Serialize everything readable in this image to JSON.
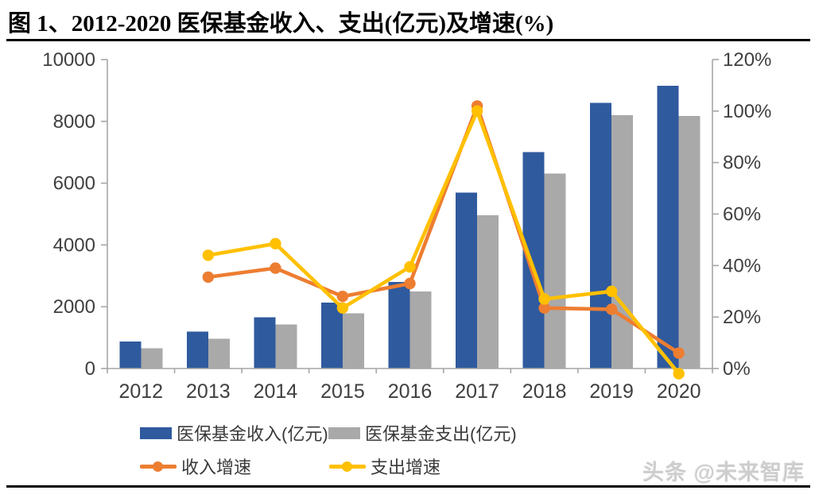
{
  "figure": {
    "title": "图 1、2012-2020 医保基金收入、支出(亿元)及增速(%)",
    "watermark": "头条 @未来智库"
  },
  "legend": [
    {
      "label": "医保基金收入(亿元)",
      "type": "bar",
      "color": "#2F5A9E"
    },
    {
      "label": "医保基金支出(亿元)",
      "type": "bar",
      "color": "#A9A9A9"
    },
    {
      "label": "收入增速",
      "type": "line",
      "color": "#ED7D31"
    },
    {
      "label": "支出增速",
      "type": "line",
      "color": "#FFC000"
    }
  ],
  "colors": {
    "axis_line": "#A6A6A6",
    "axis_text": "#3F3F3F",
    "income_bar": "#2F5A9E",
    "expense_bar": "#A9A9A9",
    "income_line": "#ED7D31",
    "expense_line": "#FFC000"
  },
  "chart_data": {
    "type": "bar",
    "subtype": "combo-bar-line-dual-axis",
    "title": "图 1、2012-2020 医保基金收入、支出(亿元)及增速(%)",
    "categories": [
      "2012",
      "2013",
      "2014",
      "2015",
      "2016",
      "2017",
      "2018",
      "2019",
      "2020"
    ],
    "series": [
      {
        "name": "医保基金收入(亿元)",
        "type": "bar",
        "axis": "left",
        "color": "#2F5A9E",
        "values": [
          870,
          1190,
          1660,
          2130,
          2800,
          5690,
          7000,
          8600,
          9150
        ]
      },
      {
        "name": "医保基金支出(亿元)",
        "type": "bar",
        "axis": "left",
        "color": "#A9A9A9",
        "values": [
          650,
          960,
          1430,
          1790,
          2490,
          4960,
          6310,
          8200,
          8170
        ]
      },
      {
        "name": "收入增速",
        "type": "line",
        "axis": "right",
        "color": "#ED7D31",
        "values": [
          null,
          35.5,
          39,
          28,
          33,
          102,
          23.5,
          23,
          6
        ]
      },
      {
        "name": "支出增速",
        "type": "line",
        "axis": "right",
        "color": "#FFC000",
        "values": [
          null,
          44,
          48.5,
          23.5,
          39.5,
          100,
          27,
          30,
          -2
        ]
      }
    ],
    "left_axis": {
      "min": 0,
      "max": 10000,
      "step": 2000,
      "tick_labels": [
        "0",
        "2000",
        "4000",
        "6000",
        "8000",
        "10000"
      ]
    },
    "right_axis": {
      "min": 0,
      "max": 120,
      "step": 20,
      "suffix": "%",
      "tick_labels": [
        "0%",
        "20%",
        "40%",
        "60%",
        "80%",
        "100%",
        "120%"
      ]
    },
    "grid": false,
    "legend_position": "bottom"
  }
}
